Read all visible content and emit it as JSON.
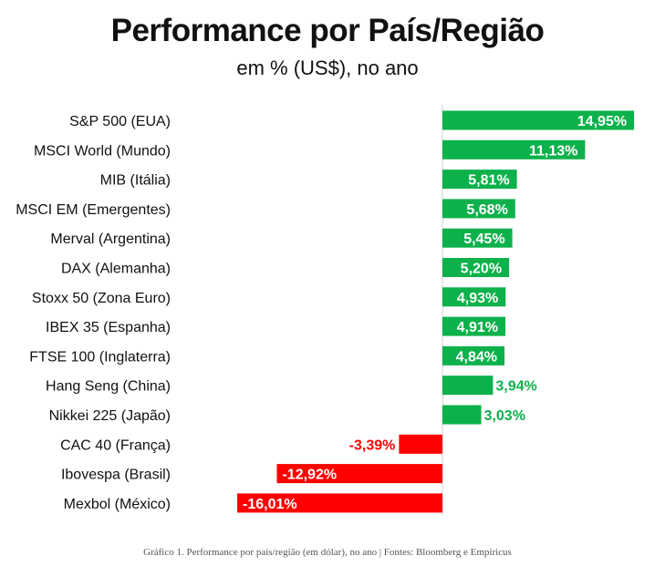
{
  "title": "Performance por País/Região",
  "subtitle": "em % (US$), no ano",
  "caption": "Gráfico 1. Performance por país/região (em dólar), no ano | Fontes: Bloomberg e Empiricus",
  "colors": {
    "positive": "#0db14b",
    "negative": "#ff0000",
    "positive_label_outside": "#0db14b",
    "label_inside": "#ffffff"
  },
  "chart_data": {
    "type": "bar",
    "orientation": "horizontal",
    "categories": [
      "S&P 500 (EUA)",
      "MSCI World (Mundo)",
      "MIB (Itália)",
      "MSCI EM (Emergentes)",
      "Merval (Argentina)",
      "DAX (Alemanha)",
      "Stoxx 50 (Zona Euro)",
      "IBEX 35 (Espanha)",
      "FTSE 100 (Inglaterra)",
      "Hang Seng (China)",
      "Nikkei 225 (Japão)",
      "CAC 40 (França)",
      "Ibovespa (Brasil)",
      "Mexbol (México)"
    ],
    "values": [
      14.95,
      11.13,
      5.81,
      5.68,
      5.45,
      5.2,
      4.93,
      4.91,
      4.84,
      3.94,
      3.03,
      -3.39,
      -12.92,
      -16.01
    ],
    "value_labels": [
      "14,95%",
      "11,13%",
      "5,81%",
      "5,68%",
      "5,45%",
      "5,20%",
      "4,93%",
      "4,91%",
      "4,84%",
      "3,94%",
      "3,03%",
      "-3,39%",
      "-12,92%",
      "-16,01%"
    ],
    "title": "Performance por País/Região",
    "subtitle": "em % (US$), no ano",
    "xlim": [
      -16.01,
      14.95
    ],
    "grid": false,
    "legend": "none"
  }
}
